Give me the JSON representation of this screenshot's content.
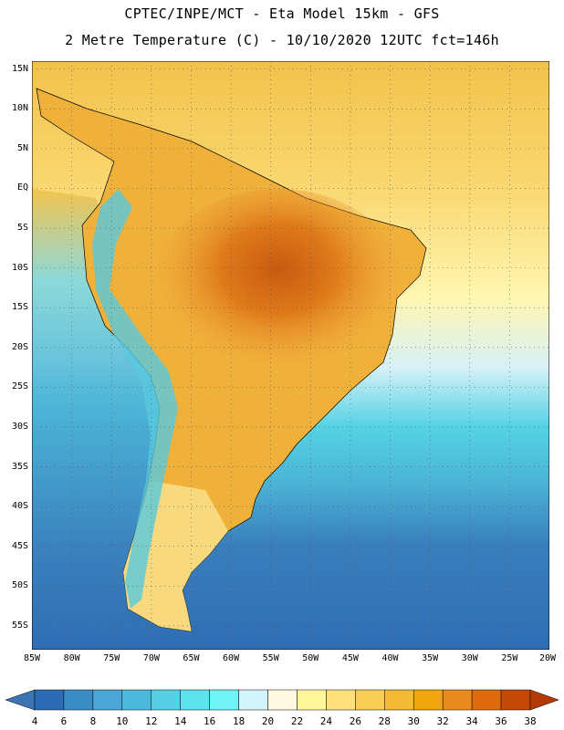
{
  "header": {
    "line1": "CPTEC/INPE/MCT -  Eta Model 15km - GFS",
    "line2": "2 Metre Temperature (C) - 10/10/2020 12UTC fct=146h"
  },
  "axes": {
    "lat_labels": [
      "15N",
      "10N",
      "5N",
      "EQ",
      "5S",
      "10S",
      "15S",
      "20S",
      "25S",
      "30S",
      "35S",
      "40S",
      "45S",
      "50S",
      "55S"
    ],
    "lat_values": [
      15,
      10,
      5,
      0,
      -5,
      -10,
      -15,
      -20,
      -25,
      -30,
      -35,
      -40,
      -45,
      -50,
      -55
    ],
    "lon_labels": [
      "85W",
      "80W",
      "75W",
      "70W",
      "65W",
      "60W",
      "55W",
      "50W",
      "45W",
      "40W",
      "35W",
      "30W",
      "25W",
      "20W"
    ],
    "lon_values": [
      -85,
      -80,
      -75,
      -70,
      -65,
      -60,
      -55,
      -50,
      -45,
      -40,
      -35,
      -30,
      -25,
      -20
    ],
    "extent": {
      "lon_min": -85,
      "lon_max": -20,
      "lat_min": -58,
      "lat_max": 16
    }
  },
  "colorbar": {
    "ticks": [
      "4",
      "6",
      "8",
      "10",
      "12",
      "14",
      "16",
      "18",
      "20",
      "22",
      "24",
      "26",
      "28",
      "30",
      "32",
      "34",
      "36",
      "38"
    ],
    "colors": [
      "#3d74b3",
      "#2b6cb5",
      "#3b8cc4",
      "#4aa6d4",
      "#4db9dd",
      "#56cfe5",
      "#5ee3ec",
      "#6ff3f4",
      "#d3f4fb",
      "#fff8e3",
      "#fff59a",
      "#fde07a",
      "#f8cd55",
      "#f2ba37",
      "#f0a60d",
      "#ea8b1f",
      "#dd6a0d",
      "#c64806",
      "#b43a05"
    ]
  }
}
